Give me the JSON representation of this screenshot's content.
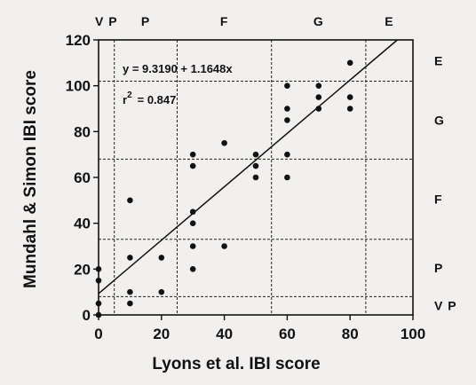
{
  "chart_data": {
    "type": "scatter",
    "title": "",
    "xlabel": "Lyons et al. IBI score",
    "ylabel": "Mundahl & Simon IBI score",
    "xlim": [
      0,
      100
    ],
    "ylim": [
      0,
      120
    ],
    "xticks": [
      0,
      20,
      40,
      60,
      80,
      100
    ],
    "yticks": [
      0,
      20,
      40,
      60,
      80,
      100,
      120
    ],
    "grid": false,
    "points": [
      {
        "x": 0,
        "y": 0
      },
      {
        "x": 0,
        "y": 5
      },
      {
        "x": 0,
        "y": 15
      },
      {
        "x": 0,
        "y": 20
      },
      {
        "x": 10,
        "y": 5
      },
      {
        "x": 10,
        "y": 10
      },
      {
        "x": 10,
        "y": 25
      },
      {
        "x": 10,
        "y": 50
      },
      {
        "x": 20,
        "y": 10
      },
      {
        "x": 20,
        "y": 25
      },
      {
        "x": 30,
        "y": 20
      },
      {
        "x": 30,
        "y": 30
      },
      {
        "x": 30,
        "y": 40
      },
      {
        "x": 30,
        "y": 45
      },
      {
        "x": 30,
        "y": 65
      },
      {
        "x": 30,
        "y": 70
      },
      {
        "x": 40,
        "y": 30
      },
      {
        "x": 40,
        "y": 75
      },
      {
        "x": 50,
        "y": 60
      },
      {
        "x": 50,
        "y": 65
      },
      {
        "x": 50,
        "y": 70
      },
      {
        "x": 60,
        "y": 60
      },
      {
        "x": 60,
        "y": 70
      },
      {
        "x": 60,
        "y": 85
      },
      {
        "x": 60,
        "y": 90
      },
      {
        "x": 60,
        "y": 100
      },
      {
        "x": 70,
        "y": 90
      },
      {
        "x": 70,
        "y": 95
      },
      {
        "x": 70,
        "y": 100
      },
      {
        "x": 80,
        "y": 90
      },
      {
        "x": 80,
        "y": 95
      },
      {
        "x": 80,
        "y": 110
      }
    ],
    "regression": {
      "intercept": 9.319,
      "slope": 1.1648,
      "equation_text": "y  =  9.3190  +  1.1648x",
      "r_label": "r",
      "r_power": "2",
      "r2_text": "=  0.847"
    },
    "x_band_edges": [
      5,
      25,
      55,
      85
    ],
    "y_band_edges": [
      8,
      33,
      68,
      102
    ],
    "x_band_labels": [
      {
        "label": "V P",
        "x": 2.5
      },
      {
        "label": "P",
        "x": 15
      },
      {
        "label": "F",
        "x": 40
      },
      {
        "label": "G",
        "x": 70
      },
      {
        "label": "E",
        "x": 92.5
      }
    ],
    "y_band_labels": [
      {
        "label": "E",
        "y": 111
      },
      {
        "label": "G",
        "y": 85
      },
      {
        "label": "F",
        "y": 50.5
      },
      {
        "label": "P",
        "y": 20.5
      },
      {
        "label": "V P",
        "y": 4
      }
    ]
  }
}
